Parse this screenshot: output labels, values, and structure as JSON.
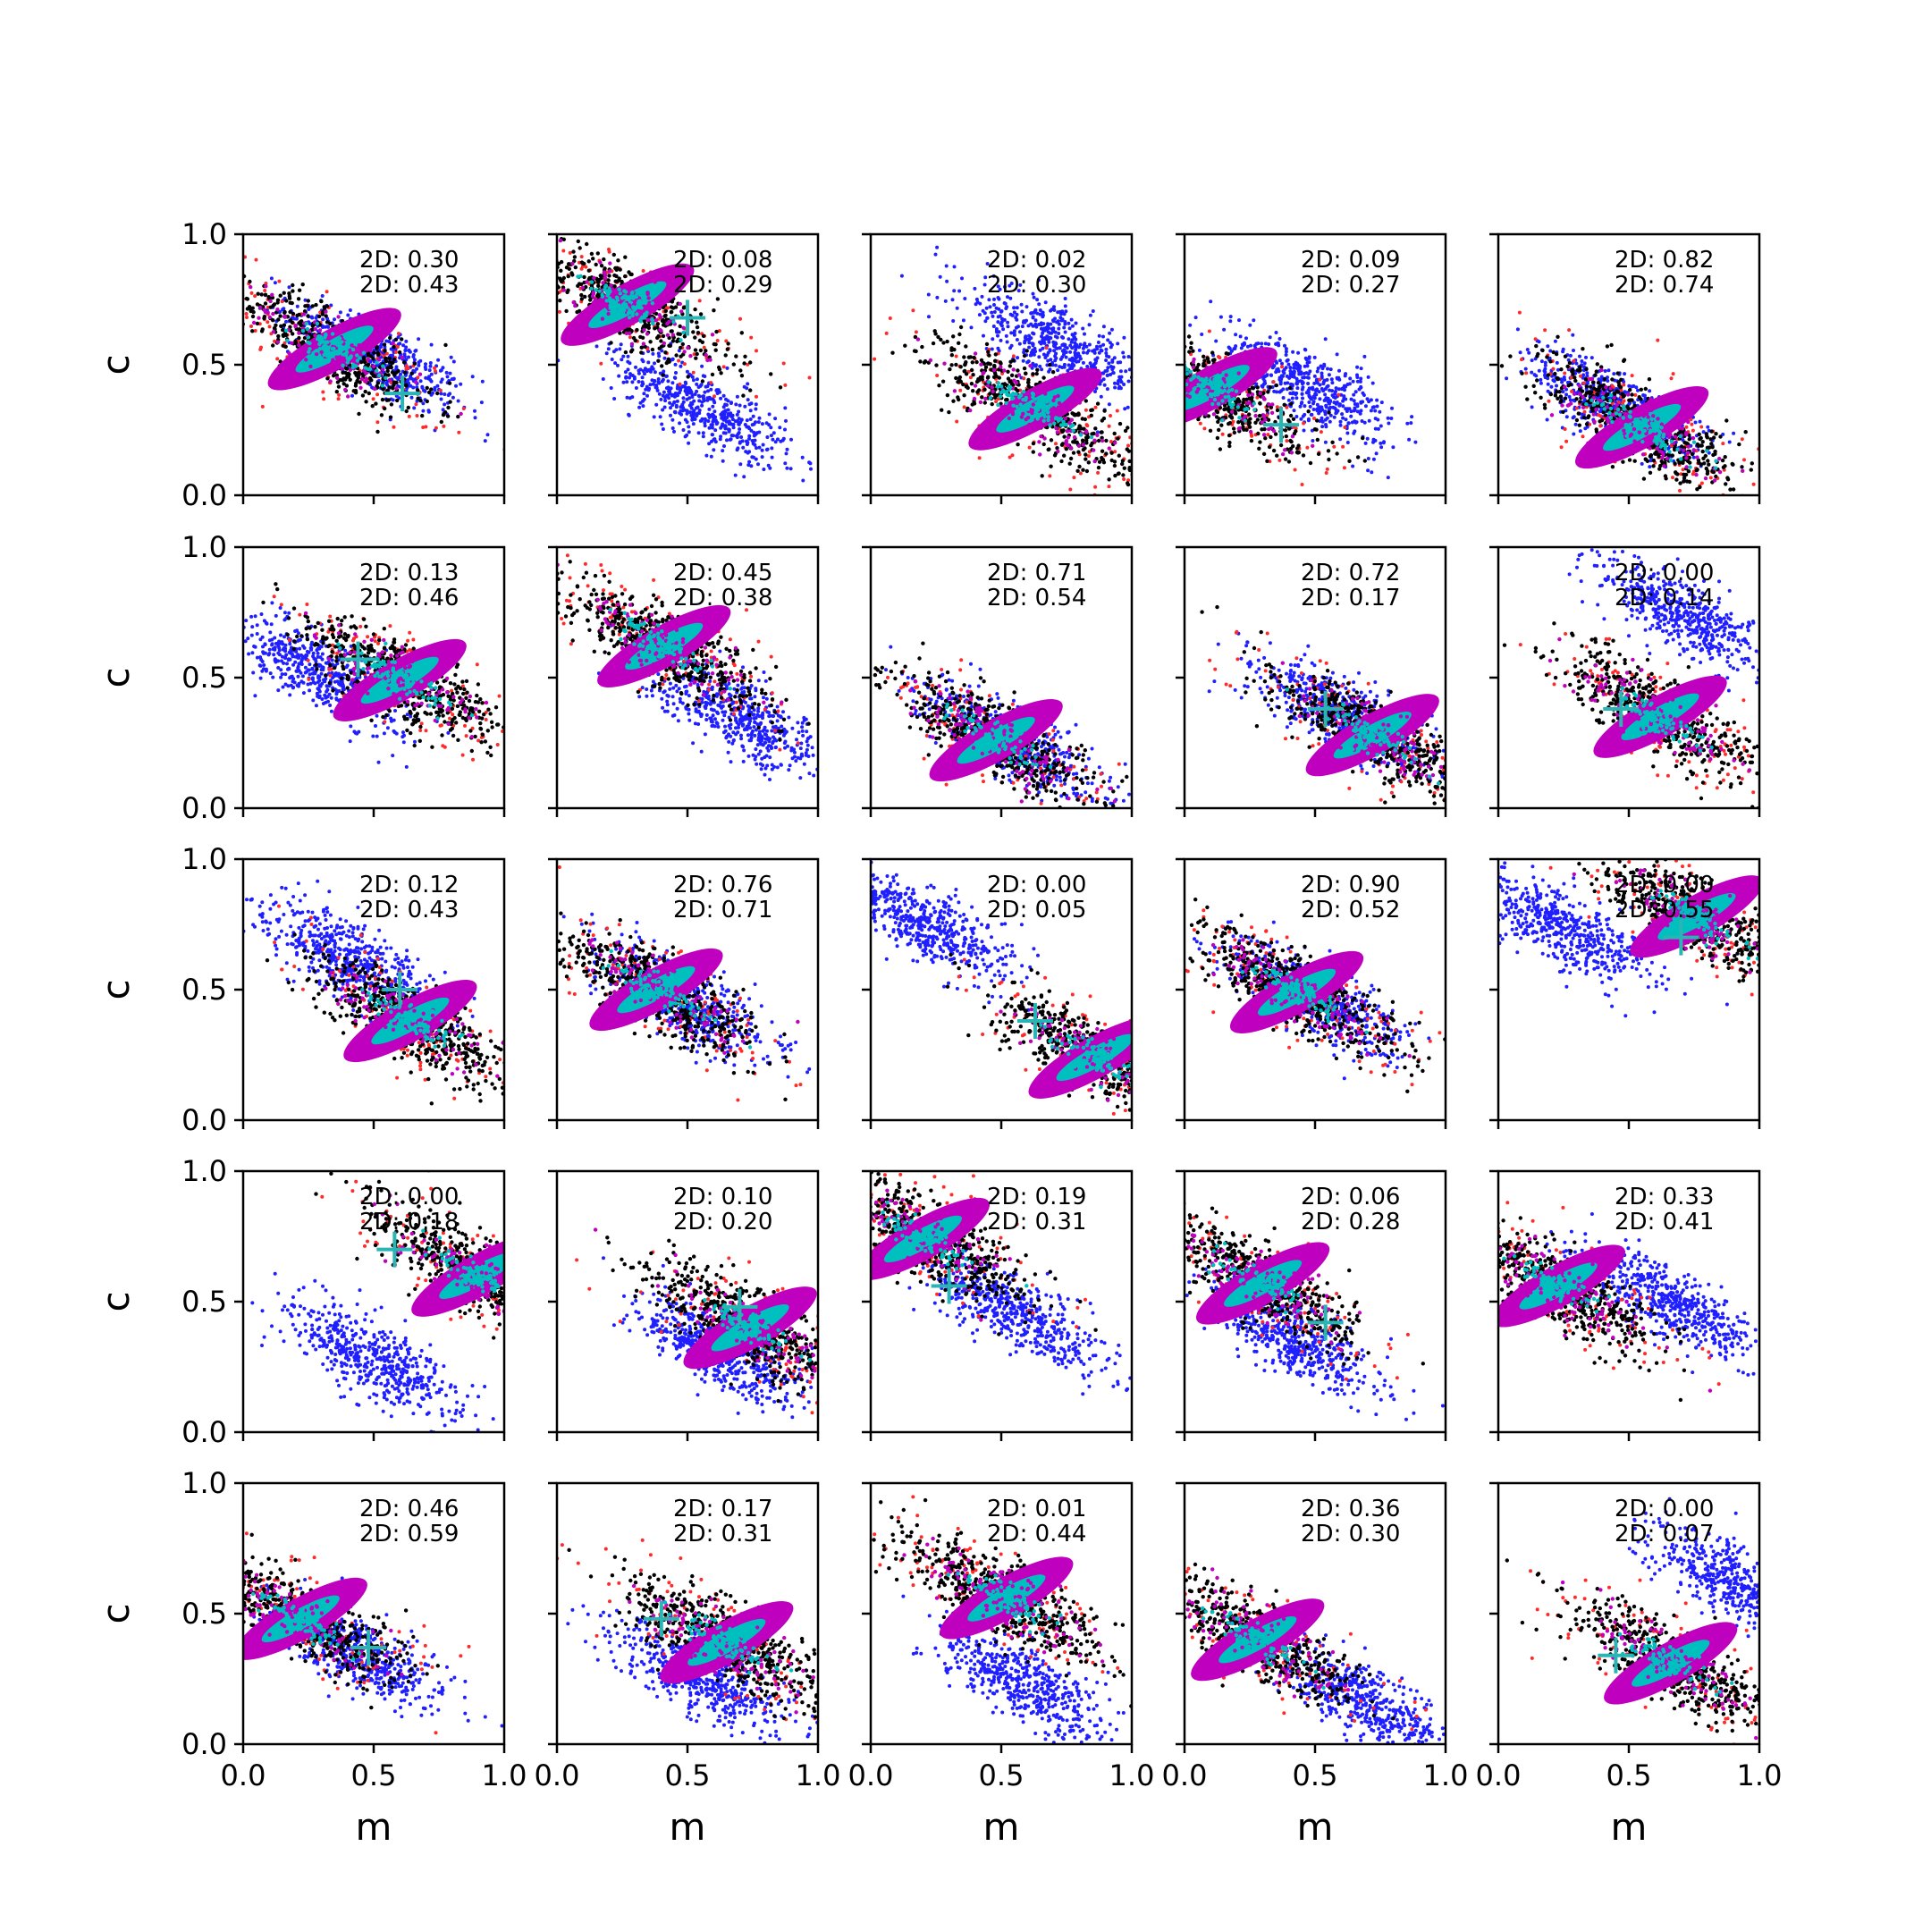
{
  "chart_data": {
    "type": "scatter",
    "rows": 5,
    "cols": 5,
    "xlabel": "m",
    "ylabel": "c",
    "xlim": [
      0,
      1
    ],
    "ylim": [
      0,
      1
    ],
    "xticks": [
      "0.0",
      "0.5",
      "1.0"
    ],
    "yticks": [
      "0.0",
      "0.5",
      "1.0"
    ],
    "colors": {
      "blue": "#1f1fff",
      "red": "#ff2a2a",
      "black": "#000000",
      "magenta": "#bf00bf",
      "cyan": "#00bfbf",
      "marker": "#2ab5b5"
    },
    "panels": [
      {
        "labels": [
          "2D: 0.30",
          "2D: 0.43"
        ],
        "cx": 0.35,
        "cy": 0.56,
        "blue": [
          0.5,
          0.53
        ],
        "marker": [
          0.61,
          0.39
        ]
      },
      {
        "labels": [
          "2D: 0.08",
          "2D: 0.29"
        ],
        "cx": 0.27,
        "cy": 0.73,
        "blue": [
          0.55,
          0.34
        ],
        "marker": [
          0.5,
          0.68
        ]
      },
      {
        "labels": [
          "2D: 0.02",
          "2D: 0.30"
        ],
        "cx": 0.63,
        "cy": 0.33,
        "blue": [
          0.7,
          0.58
        ],
        "marker": null
      },
      {
        "labels": [
          "2D: 0.09",
          "2D: 0.27"
        ],
        "cx": 0.1,
        "cy": 0.41,
        "blue": [
          0.47,
          0.42
        ],
        "marker": [
          0.37,
          0.27
        ]
      },
      {
        "labels": [
          "2D: 0.82",
          "2D: 0.74"
        ],
        "cx": 0.55,
        "cy": 0.26,
        "blue": [
          0.45,
          0.34
        ],
        "marker": null
      },
      {
        "labels": [
          "2D: 0.13",
          "2D: 0.46"
        ],
        "cx": 0.6,
        "cy": 0.49,
        "blue": [
          0.3,
          0.52
        ],
        "marker": [
          0.44,
          0.57
        ]
      },
      {
        "labels": [
          "2D: 0.45",
          "2D: 0.38"
        ],
        "cx": 0.41,
        "cy": 0.62,
        "blue": [
          0.7,
          0.35
        ],
        "marker": null
      },
      {
        "labels": [
          "2D: 0.71",
          "2D: 0.54"
        ],
        "cx": 0.48,
        "cy": 0.26,
        "blue": [
          0.55,
          0.25
        ],
        "marker": null
      },
      {
        "labels": [
          "2D: 0.72",
          "2D: 0.17"
        ],
        "cx": 0.72,
        "cy": 0.28,
        "blue": [
          0.6,
          0.36
        ],
        "marker": [
          0.54,
          0.38
        ]
      },
      {
        "labels": [
          "2D: 0.00",
          "2D: 0.14"
        ],
        "cx": 0.62,
        "cy": 0.35,
        "blue": [
          0.72,
          0.73
        ],
        "marker": [
          0.47,
          0.38
        ]
      },
      {
        "labels": [
          "2D: 0.12",
          "2D: 0.43"
        ],
        "cx": 0.64,
        "cy": 0.38,
        "blue": [
          0.4,
          0.62
        ],
        "marker": [
          0.6,
          0.5
        ]
      },
      {
        "labels": [
          "2D: 0.76",
          "2D: 0.71"
        ],
        "cx": 0.38,
        "cy": 0.5,
        "blue": [
          0.5,
          0.45
        ],
        "marker": null
      },
      {
        "labels": [
          "2D: 0.00",
          "2D: 0.05"
        ],
        "cx": 0.86,
        "cy": 0.24,
        "blue": [
          0.2,
          0.76
        ],
        "marker": [
          0.63,
          0.38
        ]
      },
      {
        "labels": [
          "2D: 0.90",
          "2D: 0.52"
        ],
        "cx": 0.43,
        "cy": 0.49,
        "blue": [
          0.48,
          0.47
        ],
        "marker": null
      },
      {
        "labels": [
          "2D: 0.00",
          "2D: 0.55"
        ],
        "cx": 0.76,
        "cy": 0.78,
        "blue": [
          0.24,
          0.74
        ],
        "marker": [
          0.7,
          0.7
        ]
      },
      {
        "labels": [
          "2D: 0.00",
          "2D: 0.18"
        ],
        "cx": 0.9,
        "cy": 0.6,
        "blue": [
          0.5,
          0.28
        ],
        "marker": [
          0.58,
          0.7
        ]
      },
      {
        "labels": [
          "2D: 0.10",
          "2D: 0.20"
        ],
        "cx": 0.74,
        "cy": 0.4,
        "blue": [
          0.62,
          0.31
        ],
        "marker": [
          0.7,
          0.48
        ]
      },
      {
        "labels": [
          "2D: 0.19",
          "2D: 0.31"
        ],
        "cx": 0.2,
        "cy": 0.74,
        "blue": [
          0.55,
          0.46
        ],
        "marker": [
          0.3,
          0.56
        ]
      },
      {
        "labels": [
          "2D: 0.06",
          "2D: 0.28"
        ],
        "cx": 0.3,
        "cy": 0.57,
        "blue": [
          0.42,
          0.35
        ],
        "marker": [
          0.54,
          0.42
        ]
      },
      {
        "labels": [
          "2D: 0.33",
          "2D: 0.41"
        ],
        "cx": 0.23,
        "cy": 0.56,
        "blue": [
          0.65,
          0.5
        ],
        "marker": null
      },
      {
        "labels": [
          "2D: 0.46",
          "2D: 0.59"
        ],
        "cx": 0.22,
        "cy": 0.48,
        "blue": [
          0.45,
          0.35
        ],
        "marker": [
          0.48,
          0.37
        ]
      },
      {
        "labels": [
          "2D: 0.17",
          "2D: 0.31"
        ],
        "cx": 0.65,
        "cy": 0.39,
        "blue": [
          0.55,
          0.25
        ],
        "marker": [
          0.4,
          0.48
        ]
      },
      {
        "labels": [
          "2D: 0.01",
          "2D: 0.44"
        ],
        "cx": 0.52,
        "cy": 0.56,
        "blue": [
          0.58,
          0.24
        ],
        "marker": null
      },
      {
        "labels": [
          "2D: 0.36",
          "2D: 0.30"
        ],
        "cx": 0.28,
        "cy": 0.4,
        "blue": [
          0.7,
          0.15
        ],
        "marker": null
      },
      {
        "labels": [
          "2D: 0.00",
          "2D: 0.07"
        ],
        "cx": 0.66,
        "cy": 0.31,
        "blue": [
          0.92,
          0.6
        ],
        "marker": [
          0.45,
          0.34
        ]
      }
    ]
  }
}
